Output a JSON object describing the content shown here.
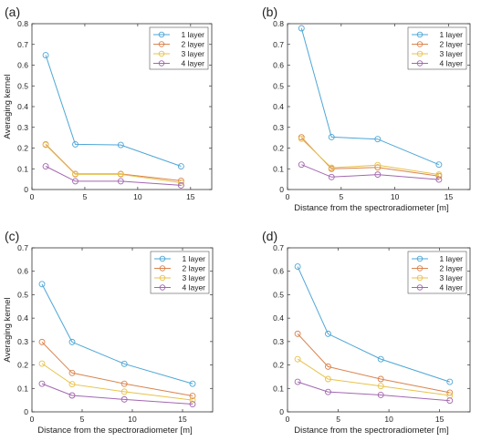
{
  "chart_data": [
    {
      "type": "line",
      "panel_label": "(a)",
      "xlabel": "",
      "ylabel": "Averaging kernel",
      "xlim": [
        0,
        17
      ],
      "ylim": [
        0,
        0.8
      ],
      "xticks": [
        0,
        5,
        10,
        15
      ],
      "yticks": [
        0,
        0.1,
        0.2,
        0.3,
        0.4,
        0.5,
        0.6,
        0.7,
        0.8
      ],
      "x": [
        1.3,
        4.1,
        8.4,
        14.1
      ],
      "legend_position": "top-right",
      "grid": false,
      "series": [
        {
          "name": "1 layer",
          "color": "#4DA6D6",
          "values": [
            0.648,
            0.218,
            0.215,
            0.112
          ]
        },
        {
          "name": "2 layer",
          "color": "#D9844F",
          "values": [
            0.218,
            0.075,
            0.075,
            0.042
          ]
        },
        {
          "name": "3 layer",
          "color": "#E8C24A",
          "values": [
            0.215,
            0.073,
            0.073,
            0.033
          ]
        },
        {
          "name": "4 layer",
          "color": "#A267B0",
          "values": [
            0.112,
            0.04,
            0.04,
            0.02
          ]
        }
      ]
    },
    {
      "type": "line",
      "panel_label": "(b)",
      "xlabel": "Distance from the spectroradiometer [m]",
      "ylabel": "",
      "xlim": [
        0,
        17
      ],
      "ylim": [
        0,
        0.8
      ],
      "xticks": [
        0,
        5,
        10,
        15
      ],
      "yticks": [
        0,
        0.1,
        0.2,
        0.3,
        0.4,
        0.5,
        0.6,
        0.7,
        0.8
      ],
      "x": [
        1.3,
        4.1,
        8.4,
        14.1
      ],
      "legend_position": "top-right",
      "grid": false,
      "series": [
        {
          "name": "1 layer",
          "color": "#4DA6D6",
          "values": [
            0.778,
            0.253,
            0.243,
            0.12
          ]
        },
        {
          "name": "2 layer",
          "color": "#D9844F",
          "values": [
            0.252,
            0.1,
            0.107,
            0.065
          ]
        },
        {
          "name": "3 layer",
          "color": "#E8C24A",
          "values": [
            0.245,
            0.105,
            0.118,
            0.072
          ]
        },
        {
          "name": "4 layer",
          "color": "#A267B0",
          "values": [
            0.12,
            0.06,
            0.072,
            0.048
          ]
        }
      ]
    },
    {
      "type": "line",
      "panel_label": "(c)",
      "xlabel": "Distance from the spectroradiometer [m]",
      "ylabel": "Averaging kernel",
      "xlim": [
        0,
        18
      ],
      "ylim": [
        0,
        0.7
      ],
      "xticks": [
        0,
        5,
        10,
        15
      ],
      "yticks": [
        0,
        0.1,
        0.2,
        0.3,
        0.4,
        0.5,
        0.6,
        0.7
      ],
      "x": [
        1.0,
        4.0,
        9.2,
        16.0
      ],
      "legend_position": "top-right",
      "grid": false,
      "series": [
        {
          "name": "1 layer",
          "color": "#4DA6D6",
          "values": [
            0.545,
            0.298,
            0.205,
            0.12
          ]
        },
        {
          "name": "2 layer",
          "color": "#D9844F",
          "values": [
            0.298,
            0.166,
            0.12,
            0.068
          ]
        },
        {
          "name": "3 layer",
          "color": "#E8C24A",
          "values": [
            0.206,
            0.118,
            0.086,
            0.05
          ]
        },
        {
          "name": "4 layer",
          "color": "#A267B0",
          "values": [
            0.12,
            0.07,
            0.053,
            0.033
          ]
        }
      ]
    },
    {
      "type": "line",
      "panel_label": "(d)",
      "xlabel": "Distance from the spectroradiometer [m]",
      "ylabel": "",
      "xlim": [
        0,
        18
      ],
      "ylim": [
        0,
        0.7
      ],
      "xticks": [
        0,
        5,
        10,
        15
      ],
      "yticks": [
        0,
        0.1,
        0.2,
        0.3,
        0.4,
        0.5,
        0.6,
        0.7
      ],
      "x": [
        1.0,
        4.0,
        9.2,
        16.0
      ],
      "legend_position": "top-right",
      "grid": false,
      "series": [
        {
          "name": "1 layer",
          "color": "#4DA6D6",
          "values": [
            0.62,
            0.333,
            0.225,
            0.128
          ]
        },
        {
          "name": "2 layer",
          "color": "#D9844F",
          "values": [
            0.333,
            0.193,
            0.14,
            0.082
          ]
        },
        {
          "name": "3 layer",
          "color": "#E8C24A",
          "values": [
            0.225,
            0.14,
            0.11,
            0.07
          ]
        },
        {
          "name": "4 layer",
          "color": "#A267B0",
          "values": [
            0.128,
            0.085,
            0.072,
            0.048
          ]
        }
      ]
    }
  ]
}
